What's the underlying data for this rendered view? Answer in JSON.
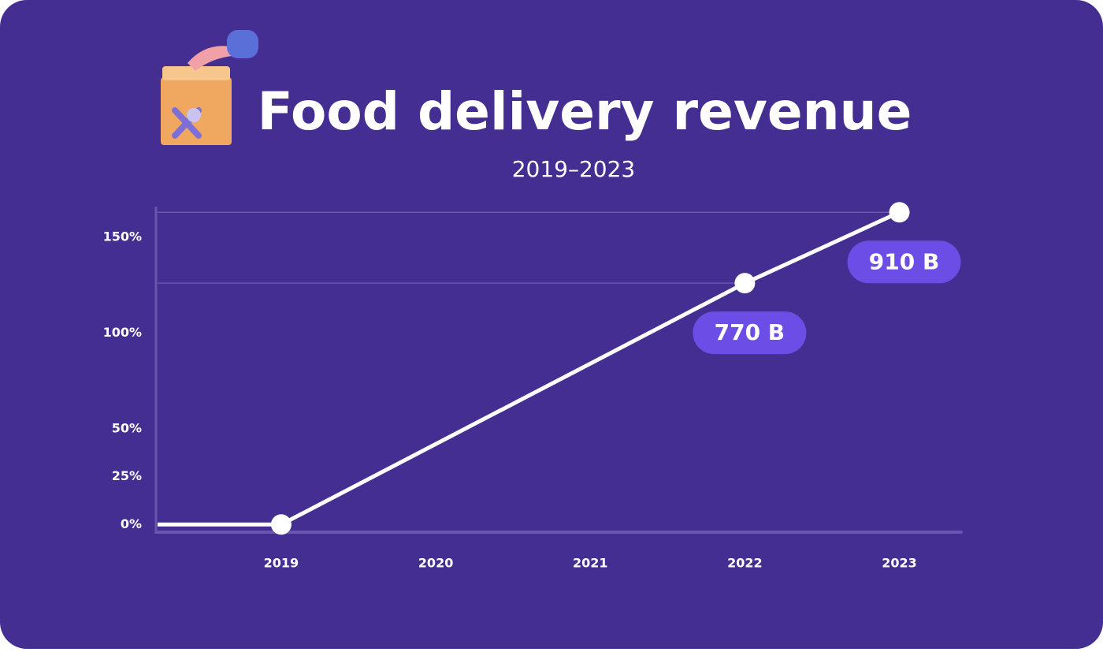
{
  "chart_data": {
    "type": "line",
    "title": "Food delivery revenue",
    "subtitle": "2019–2023",
    "x": [
      2019,
      2022,
      2023
    ],
    "values": [
      0,
      126,
      163
    ],
    "color": "#ffffff",
    "xlim": [
      2018.2,
      2023.4
    ],
    "xticks": [
      2019,
      2020,
      2021,
      2022,
      2023
    ],
    "ylim": [
      -4,
      166
    ],
    "yticks": [
      {
        "value": 0,
        "label": "0%"
      },
      {
        "value": 25,
        "label": "25%"
      },
      {
        "value": 50,
        "label": "50%"
      },
      {
        "value": 100,
        "label": "100%"
      },
      {
        "value": 150,
        "label": "150%"
      }
    ],
    "annotations": [
      "770 B",
      "910 B"
    ]
  }
}
